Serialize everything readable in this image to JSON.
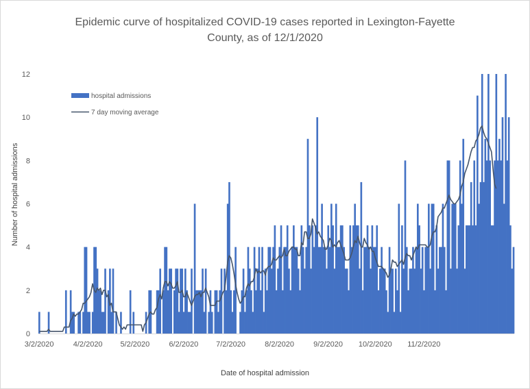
{
  "chart_data": {
    "type": "bar",
    "title_line1": "Epidemic curve of hospitalized COVID-19 cases reported in Lexington-Fayette",
    "title_line2": "County, as of 12/1/2020",
    "xlabel": "Date of hospital admission",
    "ylabel": "Number of hospital admissions",
    "start_date": "2020-03-02",
    "ylim": [
      0,
      12
    ],
    "yticks": [
      0,
      2,
      4,
      6,
      8,
      10,
      12
    ],
    "xtick_labels": [
      "3/2/2020",
      "4/2/2020",
      "5/2/2020",
      "6/2/2020",
      "7/2/2020",
      "8/2/2020",
      "9/2/2020",
      "10/2/2020",
      "11/2/2020"
    ],
    "legend": {
      "position": "top-left",
      "bars": "hospital admissions",
      "line": "7 day moving average"
    },
    "colors": {
      "bars": "#4472c4",
      "line": "#44546a"
    },
    "series": [
      {
        "name": "hospital admissions",
        "values": [
          1,
          0,
          0,
          0,
          0,
          0,
          1,
          0,
          0,
          0,
          0,
          0,
          0,
          0,
          0,
          0,
          0,
          2,
          0,
          0,
          2,
          1,
          1,
          0,
          0,
          1,
          1,
          0,
          1,
          4,
          4,
          1,
          1,
          0,
          1,
          4,
          4,
          3,
          2,
          2,
          1,
          1,
          3,
          0,
          2,
          3,
          1,
          3,
          0,
          1,
          0,
          0,
          1,
          0,
          0,
          0,
          0,
          0,
          2,
          0,
          1,
          0,
          0,
          0,
          0,
          0,
          0,
          0,
          1,
          0,
          2,
          2,
          0,
          0,
          0,
          2,
          2,
          3,
          0,
          2,
          4,
          4,
          2,
          3,
          3,
          0,
          2,
          3,
          3,
          1,
          3,
          3,
          1,
          3,
          2,
          1,
          1,
          3,
          0,
          6,
          2,
          2,
          2,
          2,
          3,
          1,
          3,
          0,
          1,
          2,
          1,
          0,
          2,
          2,
          1,
          2,
          3,
          0,
          3,
          2,
          6,
          7,
          2,
          1,
          2,
          4,
          0,
          0,
          1,
          2,
          3,
          1,
          2,
          4,
          3,
          2,
          1,
          4,
          2,
          3,
          4,
          2,
          4,
          1,
          3,
          2,
          4,
          4,
          3,
          4,
          5,
          2,
          3,
          4,
          5,
          2,
          4,
          4,
          5,
          3,
          2,
          4,
          5,
          4,
          4,
          3,
          2,
          5,
          4,
          3,
          4,
          9,
          5,
          3,
          5,
          4,
          5,
          10,
          4,
          4,
          6,
          4,
          4,
          3,
          5,
          4,
          6,
          5,
          3,
          6,
          4,
          4,
          5,
          5,
          4,
          3,
          3,
          2,
          5,
          4,
          5,
          6,
          5,
          5,
          3,
          7,
          2,
          4,
          4,
          5,
          4,
          3,
          5,
          4,
          4,
          5,
          2,
          3,
          4,
          3,
          3,
          2,
          1,
          4,
          3,
          3,
          1,
          3,
          2,
          6,
          1,
          5,
          3,
          8,
          4,
          2,
          3,
          3,
          4,
          3,
          4,
          6,
          5,
          3,
          4,
          2,
          4,
          4,
          6,
          3,
          6,
          6,
          2,
          5,
          3,
          4,
          4,
          6,
          4,
          2,
          8,
          8,
          3,
          6,
          6,
          6,
          3,
          5,
          8,
          6,
          9,
          3,
          5,
          5,
          5,
          7,
          5,
          8,
          5,
          11,
          6,
          7,
          12,
          7,
          9,
          8,
          12,
          8,
          5,
          5,
          8,
          12,
          8,
          9,
          8,
          10,
          6,
          12,
          8,
          10,
          5,
          3,
          4
        ]
      },
      {
        "name": "7 day moving average",
        "values": [
          0.1,
          0.1,
          0.1,
          0.1,
          0.1,
          0.1,
          0.2,
          0.1,
          0.1,
          0.1,
          0.1,
          0.1,
          0.1,
          0.1,
          0.1,
          0.1,
          0.3,
          0.3,
          0.3,
          0.3,
          0.6,
          0.7,
          0.9,
          0.8,
          0.9,
          0.9,
          1.0,
          1.1,
          1.4,
          1.4,
          1.5,
          1.6,
          1.7,
          1.9,
          2.3,
          2.0,
          1.9,
          2.1,
          2.0,
          2.1,
          1.8,
          2.0,
          2.0,
          1.7,
          1.8,
          1.3,
          1.4,
          1.0,
          1.0,
          1.0,
          0.7,
          0.4,
          0.3,
          0.2,
          0.3,
          0.2,
          0.4,
          0.4,
          0.4,
          0.4,
          0.4,
          0.4,
          0.4,
          0.4,
          0.4,
          0.4,
          0.1,
          0.4,
          0.5,
          0.7,
          0.9,
          1.0,
          0.9,
          0.9,
          1.1,
          1.2,
          1.6,
          1.8,
          1.6,
          2.1,
          2.4,
          2.4,
          2.2,
          2.4,
          2.3,
          2.1,
          2.1,
          2.2,
          2.4,
          1.9,
          1.9,
          2.0,
          1.7,
          1.7,
          1.9,
          1.7,
          1.5,
          1.3,
          1.5,
          1.7,
          1.8,
          1.8,
          1.9,
          1.7,
          1.9,
          1.9,
          2.1,
          1.9,
          1.7,
          1.3,
          1.3,
          1.3,
          1.3,
          1.5,
          1.5,
          1.5,
          1.7,
          1.9,
          2.0,
          2.6,
          3.3,
          3.6,
          3.5,
          3.2,
          2.8,
          2.3,
          1.9,
          1.6,
          1.4,
          1.5,
          1.7,
          1.7,
          2.1,
          2.3,
          2.2,
          2.4,
          2.4,
          2.6,
          3.0,
          2.8,
          2.9,
          2.8,
          2.9,
          2.9,
          2.7,
          3.0,
          3.1,
          3.1,
          3.2,
          3.5,
          3.4,
          3.4,
          3.5,
          3.6,
          3.5,
          3.6,
          3.9,
          3.6,
          3.6,
          3.8,
          3.9,
          4.0,
          4.0,
          3.9,
          3.9,
          3.6,
          3.6,
          4.2,
          4.1,
          4.7,
          4.7,
          4.4,
          4.4,
          4.6,
          5.3,
          5.1,
          4.9,
          4.6,
          4.7,
          4.5,
          4.4,
          4.3,
          3.9,
          3.9,
          4.1,
          4.4,
          4.3,
          4.0,
          4.1,
          4.0,
          4.2,
          4.3,
          4.1,
          3.9,
          3.7,
          3.4,
          3.4,
          3.4,
          3.5,
          3.7,
          4.0,
          4.3,
          4.2,
          4.5,
          4.2,
          4.0,
          4.0,
          4.4,
          4.2,
          4.1,
          3.9,
          4.0,
          3.8,
          3.8,
          3.5,
          3.3,
          3.1,
          3.1,
          3.1,
          3.0,
          2.9,
          2.8,
          2.6,
          2.7,
          3.0,
          3.4,
          3.3,
          3.3,
          3.1,
          3.2,
          3.3,
          3.4,
          3.2,
          3.5,
          3.7,
          3.6,
          3.6,
          3.4,
          3.6,
          3.8,
          4.0,
          3.9,
          4.1,
          4.1,
          4.1,
          4.1,
          4.1,
          4.0,
          4.0,
          4.1,
          4.5,
          4.7,
          4.7,
          4.9,
          5.4,
          5.5,
          5.6,
          5.8,
          5.8,
          6.0,
          6.2,
          6.4,
          6.2,
          6.1,
          6.0,
          6.0,
          6.1,
          6.2,
          6.4,
          6.8,
          7.0,
          7.4,
          7.6,
          7.8,
          8.1,
          8.4,
          8.6,
          8.6,
          8.9,
          9.0,
          9.2,
          9.5,
          9.6,
          9.3,
          9.1,
          9.0,
          8.8,
          8.6,
          8.4,
          7.6,
          6.9,
          6.7
        ]
      }
    ]
  }
}
